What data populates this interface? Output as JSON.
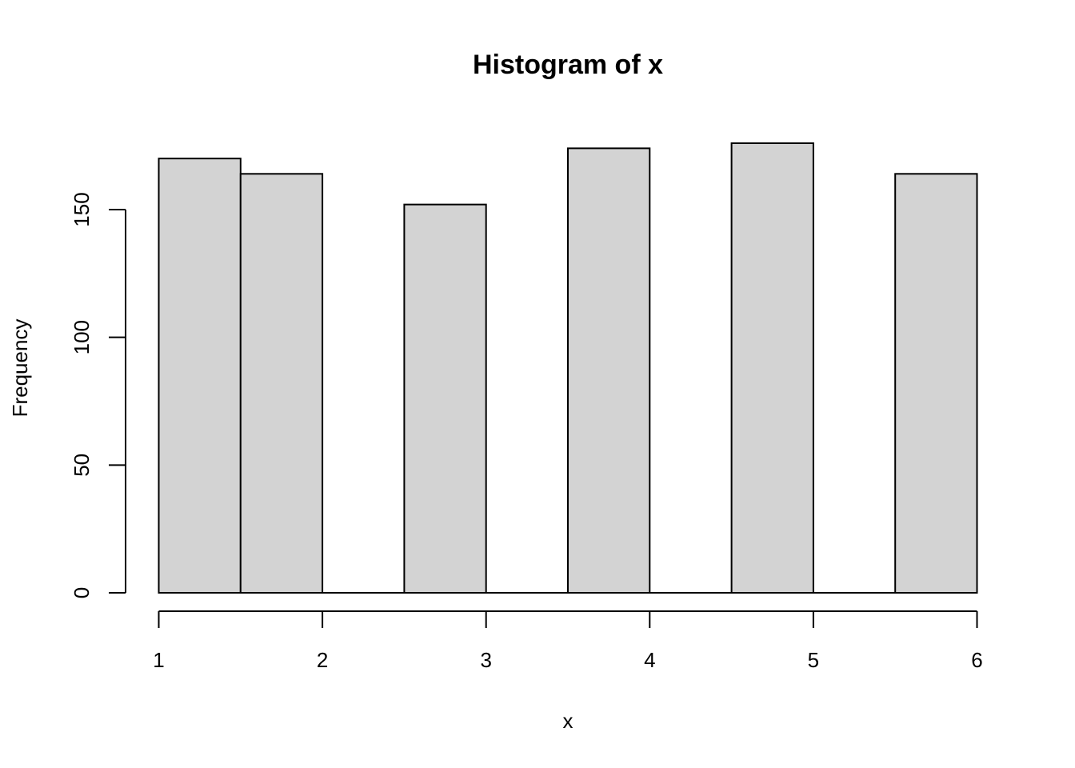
{
  "chart_data": {
    "type": "bar",
    "title": "Histogram of x",
    "xlabel": "x",
    "ylabel": "Frequency",
    "bins": [
      {
        "start": 1.0,
        "end": 1.5,
        "count": 170
      },
      {
        "start": 1.5,
        "end": 2.0,
        "count": 164
      },
      {
        "start": 2.0,
        "end": 2.5,
        "count": 0
      },
      {
        "start": 2.5,
        "end": 3.0,
        "count": 152
      },
      {
        "start": 3.0,
        "end": 3.5,
        "count": 0
      },
      {
        "start": 3.5,
        "end": 4.0,
        "count": 174
      },
      {
        "start": 4.0,
        "end": 4.5,
        "count": 0
      },
      {
        "start": 4.5,
        "end": 5.0,
        "count": 176
      },
      {
        "start": 5.0,
        "end": 5.5,
        "count": 0
      },
      {
        "start": 5.5,
        "end": 6.0,
        "count": 164
      }
    ],
    "xticks": [
      1,
      2,
      3,
      4,
      5,
      6
    ],
    "yticks": [
      0,
      50,
      100,
      150
    ],
    "xlim": [
      1,
      6
    ],
    "ylim": [
      0,
      176
    ],
    "grid": false,
    "bar_color": "#d3d3d3",
    "edge_color": "#000000"
  }
}
